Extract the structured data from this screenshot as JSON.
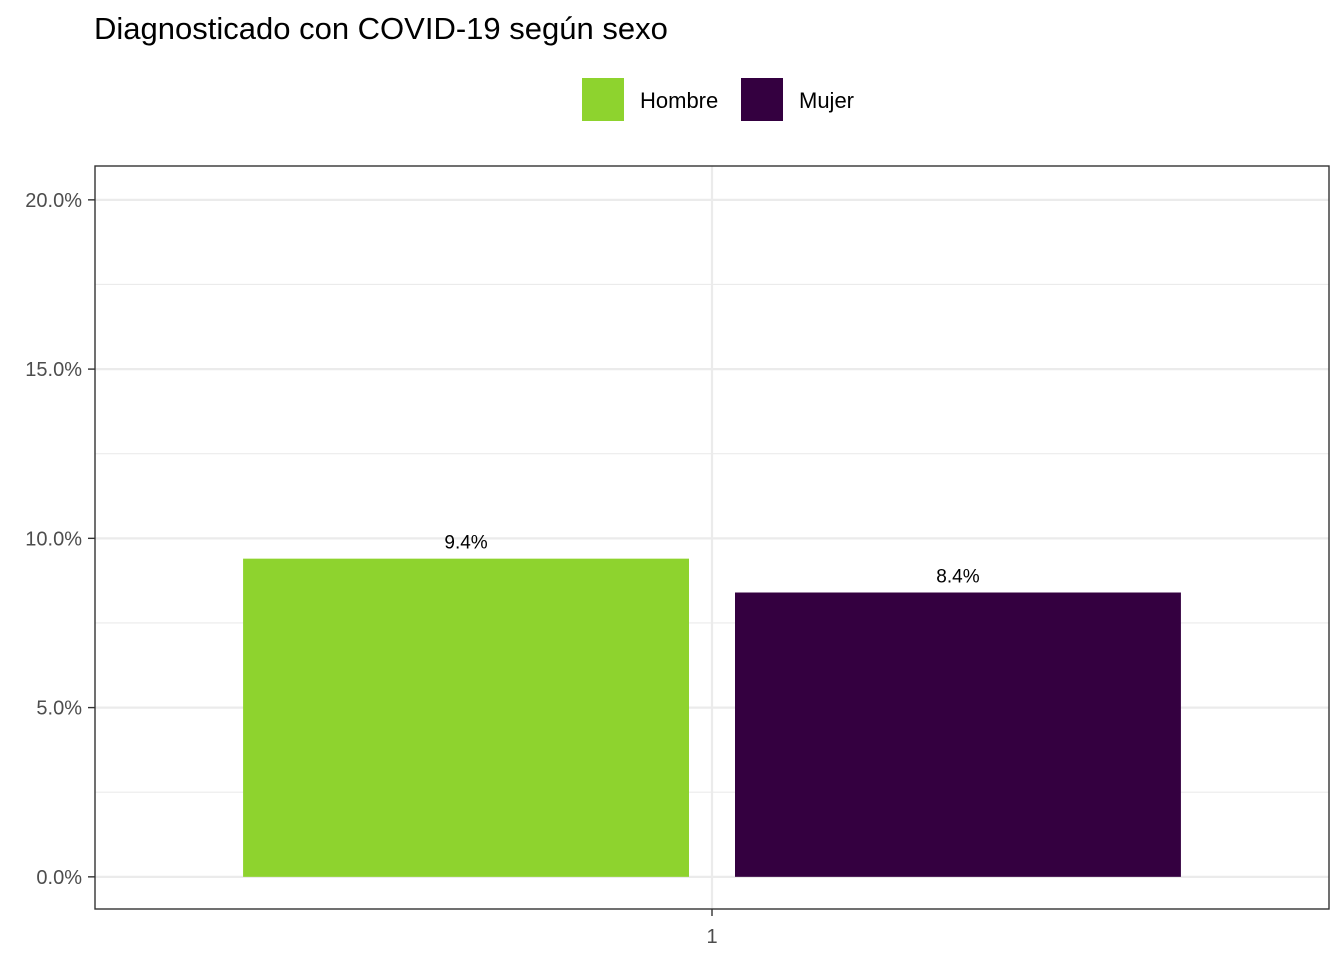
{
  "chart_data": {
    "type": "bar",
    "title": "Diagnosticado con COVID-19 según sexo",
    "xlabel": "",
    "ylabel": "",
    "categories": [
      "1"
    ],
    "series": [
      {
        "name": "Hombre",
        "values": [
          9.4
        ],
        "label": "9.4%",
        "color": "#8ed32e"
      },
      {
        "name": "Mujer",
        "values": [
          8.4
        ],
        "label": "8.4%",
        "color": "#340040"
      }
    ],
    "ylim": [
      -0.95,
      21.0
    ],
    "yticks": [
      0,
      5,
      10,
      15,
      20
    ],
    "ytick_labels": [
      "0.0%",
      "5.0%",
      "10.0%",
      "15.0%",
      "20.0%"
    ],
    "grid": true,
    "legend_position": "top"
  }
}
